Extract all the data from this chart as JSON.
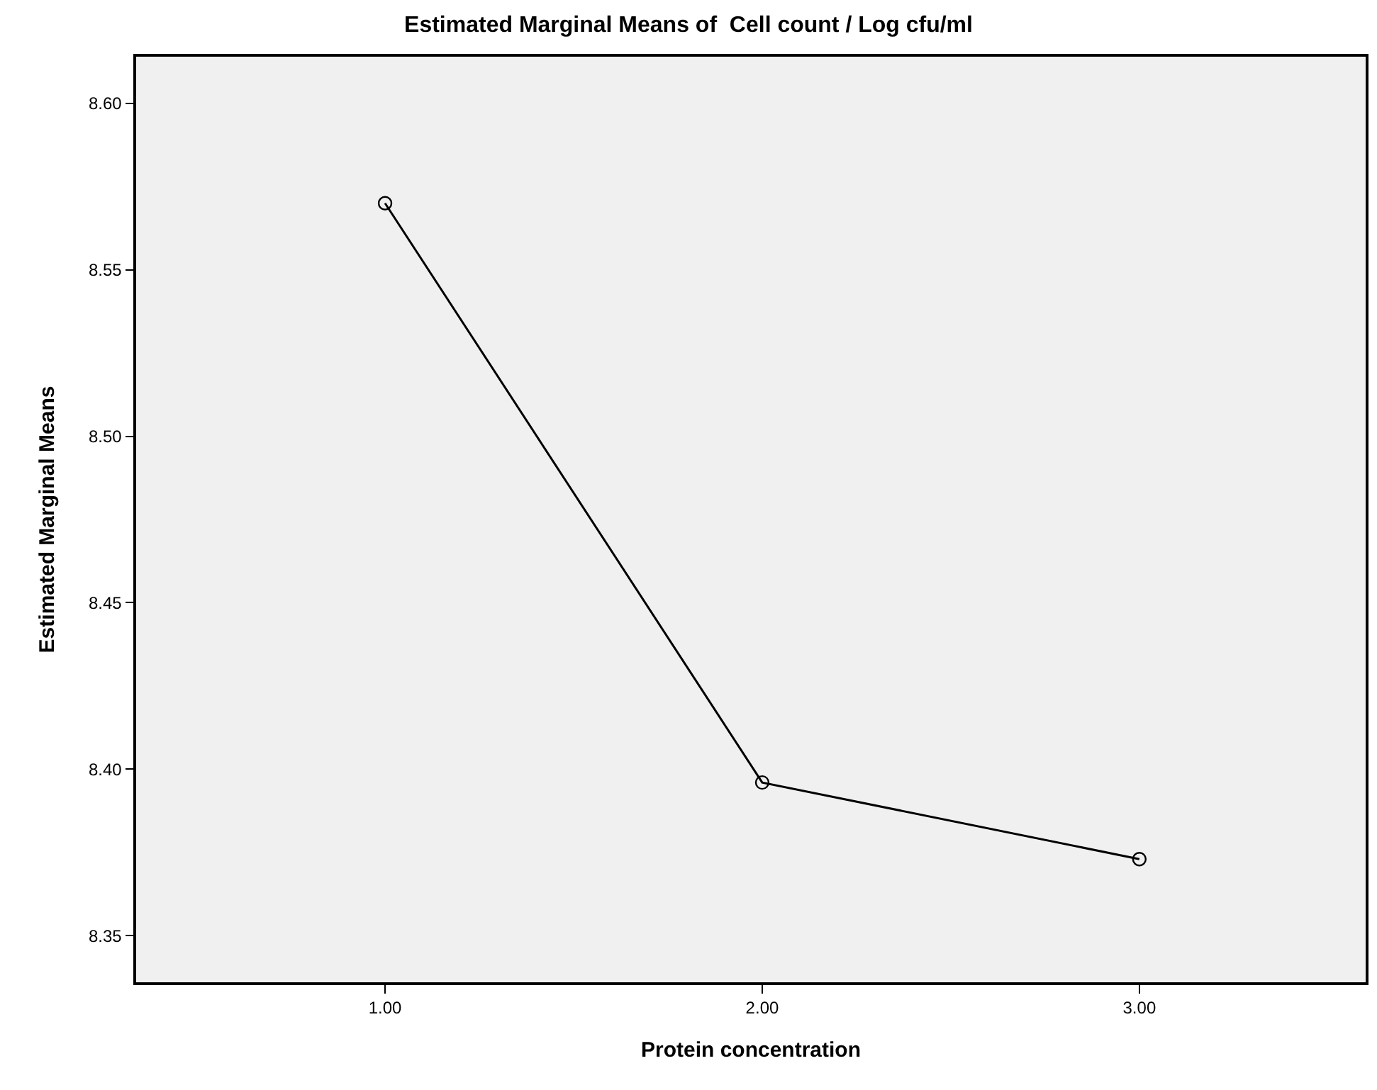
{
  "chart_data": {
    "type": "line",
    "title": "Estimated Marginal Means of  Cell count / Log cfu/ml",
    "xlabel": "Protein concentration",
    "ylabel": "Estimated Marginal Means",
    "categories": [
      "1.00",
      "2.00",
      "3.00"
    ],
    "series": [
      {
        "color": "#000000",
        "values": [
          8.57,
          8.396,
          8.373
        ]
      }
    ],
    "ylim": [
      8.336,
      8.614
    ],
    "yticks": [
      {
        "value": 8.35,
        "label": "8.35"
      },
      {
        "value": 8.4,
        "label": "8.40"
      },
      {
        "value": 8.45,
        "label": "8.45"
      },
      {
        "value": 8.5,
        "label": "8.50"
      },
      {
        "value": 8.55,
        "label": "8.55"
      },
      {
        "value": 8.6,
        "label": "8.60"
      }
    ],
    "grid": false,
    "marker": "circle",
    "line_style": "solid"
  }
}
